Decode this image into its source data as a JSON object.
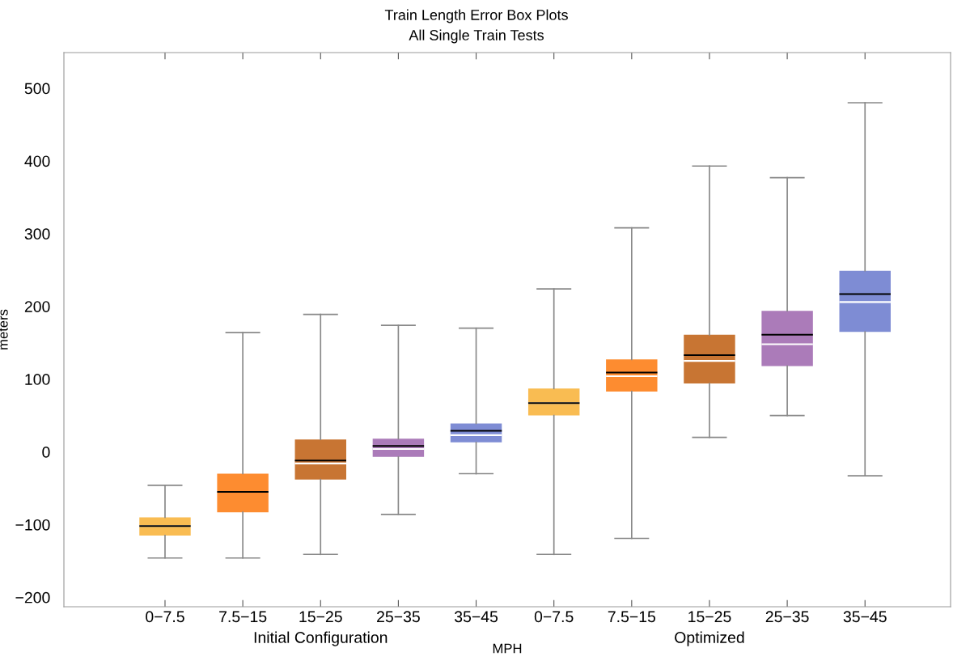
{
  "chart_data": {
    "type": "box",
    "title": "Train Length Error Box Plots",
    "subtitle": "All Single Train Tests",
    "xlabel": "MPH",
    "ylabel": "meters",
    "categories": [
      "0−7.5",
      "7.5−15",
      "15−25",
      "25−35",
      "35−45",
      "0−7.5",
      "7.5−15",
      "15−25",
      "25−35",
      "35−45"
    ],
    "colors": [
      "#f9bc52",
      "#fd8c30",
      "#c87533",
      "#ab7bb9",
      "#7e8cd4",
      "#f9bc52",
      "#fd8c30",
      "#c87533",
      "#ab7bb9",
      "#7e8cd4"
    ],
    "boxes": [
      {
        "low": -146,
        "q1": -115,
        "median": -102,
        "q3": -90,
        "high": -46,
        "mean": -102
      },
      {
        "low": -146,
        "q1": -83,
        "median": -55,
        "q3": -30,
        "high": 164,
        "mean": -55
      },
      {
        "low": -141,
        "q1": -38,
        "median": -16,
        "q3": 17,
        "high": 189,
        "mean": -12
      },
      {
        "low": -86,
        "q1": -7,
        "median": 4,
        "q3": 18,
        "high": 174,
        "mean": 8
      },
      {
        "low": -30,
        "q1": 13,
        "median": 23,
        "q3": 39,
        "high": 170,
        "mean": 29
      },
      {
        "low": -141,
        "q1": 50,
        "median": 67,
        "q3": 87,
        "high": 224,
        "mean": 67
      },
      {
        "low": -119,
        "q1": 83,
        "median": 104,
        "q3": 127,
        "high": 308,
        "mean": 109
      },
      {
        "low": 20,
        "q1": 94,
        "median": 125,
        "q3": 161,
        "high": 393,
        "mean": 133
      },
      {
        "low": 50,
        "q1": 118,
        "median": 148,
        "q3": 194,
        "high": 377,
        "mean": 161
      },
      {
        "low": -33,
        "q1": 165,
        "median": 206,
        "q3": 249,
        "high": 480,
        "mean": 217
      }
    ],
    "annotations": [
      "Initial Configuration",
      "Optimized"
    ],
    "ylim": [
      -213,
      549
    ],
    "yticks": [
      {
        "value": -200,
        "label": "−200"
      },
      {
        "value": -100,
        "label": "−100"
      },
      0,
      100,
      200,
      300,
      400,
      500
    ],
    "grid": false
  }
}
